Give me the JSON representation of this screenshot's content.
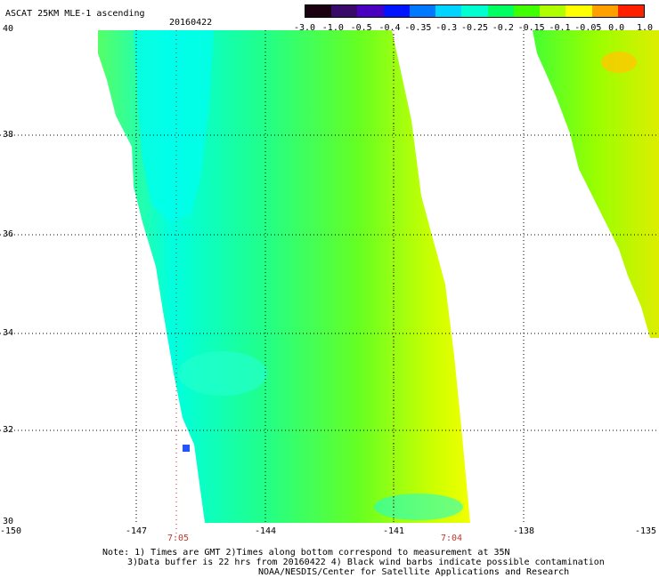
{
  "header": {
    "title": "ASCAT 25KM MLE-1 ascending",
    "date": "20160422"
  },
  "colorbar": {
    "labels": [
      "-3.0",
      "-1.0",
      "-0.5",
      "-0.4",
      "-0.35",
      "-0.3",
      "-0.25",
      "-0.2",
      "-0.15",
      "-0.1",
      "-0.05",
      "0.0",
      "1.0"
    ],
    "colors": [
      "#1a0010",
      "#3a0a6a",
      "#4a00c0",
      "#0014ff",
      "#0078ff",
      "#00d4ff",
      "#00ffd0",
      "#00ff60",
      "#40ff00",
      "#b0ff00",
      "#ffff00",
      "#ffa000",
      "#ff2000"
    ]
  },
  "map": {
    "lat_labels": [
      "40",
      "38",
      "36",
      "34",
      "32",
      "30"
    ],
    "lon_labels": [
      "-150",
      "-147",
      "-144",
      "-141",
      "-138",
      "-135"
    ],
    "time_labels": [
      "7:05",
      "7:04"
    ]
  },
  "footer": {
    "note1": "Note: 1) Times are GMT 2)Times along bottom correspond to measurement at 35N",
    "note2": "3)Data buffer is 22 hrs from 20160422 4) Black wind barbs indicate possible contamination",
    "credit": "NOAA/NESDIS/Center for Satellite Applications and Research"
  }
}
